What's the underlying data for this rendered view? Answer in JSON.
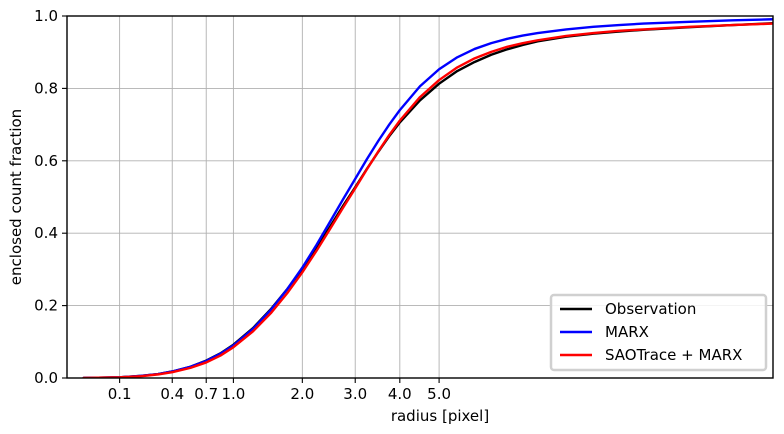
{
  "chart_data": {
    "type": "line",
    "xlabel": "radius [pixel]",
    "ylabel": "enclosed count fraction",
    "xscale": "power",
    "xlim": [
      0.0,
      18.0
    ],
    "ylim": [
      0.0,
      1.0
    ],
    "grid": true,
    "legend_position": "bottom-right",
    "x_ticks": [
      {
        "value": 0.1,
        "label": "0.1"
      },
      {
        "value": 0.4,
        "label": "0.4"
      },
      {
        "value": 0.7,
        "label": "0.7"
      },
      {
        "value": 1.0,
        "label": "1.0"
      },
      {
        "value": 2.0,
        "label": "2.0"
      },
      {
        "value": 3.0,
        "label": "3.0"
      },
      {
        "value": 4.0,
        "label": "4.0"
      },
      {
        "value": 5.0,
        "label": "5.0"
      }
    ],
    "y_ticks": [
      {
        "value": 0.0,
        "label": "0.0"
      },
      {
        "value": 0.2,
        "label": "0.2"
      },
      {
        "value": 0.4,
        "label": "0.4"
      },
      {
        "value": 0.6,
        "label": "0.6"
      },
      {
        "value": 0.8,
        "label": "0.8"
      },
      {
        "value": 1.0,
        "label": "1.0"
      }
    ],
    "series": [
      {
        "name": "Observation",
        "color": "#000000",
        "x": [
          0.01,
          0.1,
          0.2,
          0.3,
          0.4,
          0.55,
          0.7,
          0.85,
          1.0,
          1.25,
          1.5,
          1.75,
          2.0,
          2.25,
          2.5,
          2.75,
          3.0,
          3.25,
          3.5,
          3.75,
          4.0,
          4.5,
          5.0,
          5.5,
          6.0,
          6.5,
          7.0,
          7.5,
          8.0,
          9.0,
          10.0,
          11.0,
          12.0,
          14.0,
          16.0,
          18.0
        ],
        "values": [
          0.0,
          0.002,
          0.006,
          0.011,
          0.018,
          0.031,
          0.048,
          0.068,
          0.092,
          0.138,
          0.19,
          0.245,
          0.302,
          0.36,
          0.418,
          0.475,
          0.527,
          0.578,
          0.625,
          0.668,
          0.706,
          0.767,
          0.813,
          0.848,
          0.873,
          0.893,
          0.908,
          0.92,
          0.93,
          0.943,
          0.951,
          0.957,
          0.962,
          0.969,
          0.975,
          0.98
        ]
      },
      {
        "name": "MARX",
        "color": "#0000ff",
        "x": [
          0.01,
          0.1,
          0.2,
          0.3,
          0.4,
          0.55,
          0.7,
          0.85,
          1.0,
          1.25,
          1.5,
          1.75,
          2.0,
          2.25,
          2.5,
          2.75,
          3.0,
          3.25,
          3.5,
          3.75,
          4.0,
          4.5,
          5.0,
          5.5,
          6.0,
          6.5,
          7.0,
          7.5,
          8.0,
          9.0,
          10.0,
          11.0,
          12.0,
          14.0,
          16.0,
          18.0
        ],
        "values": [
          0.0,
          0.002,
          0.006,
          0.011,
          0.018,
          0.031,
          0.047,
          0.067,
          0.09,
          0.136,
          0.188,
          0.245,
          0.305,
          0.368,
          0.432,
          0.493,
          0.55,
          0.605,
          0.655,
          0.7,
          0.74,
          0.806,
          0.853,
          0.886,
          0.909,
          0.925,
          0.937,
          0.946,
          0.953,
          0.963,
          0.97,
          0.975,
          0.979,
          0.984,
          0.988,
          0.991
        ]
      },
      {
        "name": "SAOTrace + MARX",
        "color": "#ff0000",
        "x": [
          0.01,
          0.1,
          0.2,
          0.3,
          0.4,
          0.55,
          0.7,
          0.85,
          1.0,
          1.25,
          1.5,
          1.75,
          2.0,
          2.25,
          2.5,
          2.75,
          3.0,
          3.25,
          3.5,
          3.75,
          4.0,
          4.5,
          5.0,
          5.5,
          6.0,
          6.5,
          7.0,
          7.5,
          8.0,
          9.0,
          10.0,
          11.0,
          12.0,
          14.0,
          16.0,
          18.0
        ],
        "values": [
          0.0,
          0.002,
          0.005,
          0.01,
          0.016,
          0.028,
          0.043,
          0.062,
          0.085,
          0.129,
          0.179,
          0.234,
          0.292,
          0.352,
          0.412,
          0.47,
          0.524,
          0.577,
          0.626,
          0.671,
          0.711,
          0.776,
          0.823,
          0.858,
          0.883,
          0.901,
          0.915,
          0.925,
          0.933,
          0.945,
          0.953,
          0.959,
          0.963,
          0.97,
          0.975,
          0.979
        ]
      }
    ]
  }
}
